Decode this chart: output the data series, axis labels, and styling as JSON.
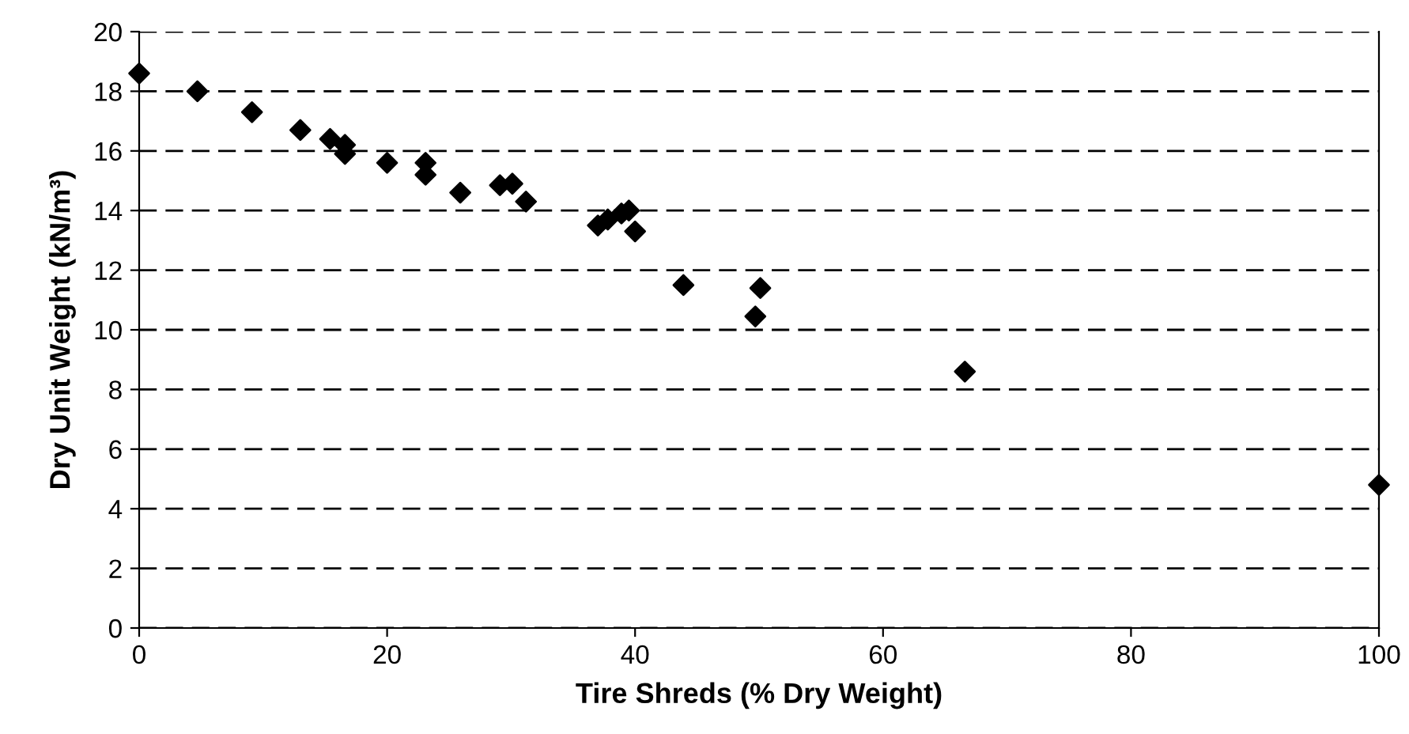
{
  "chart_data": {
    "type": "scatter",
    "xlabel": "Tire Shreds (% Dry Weight)",
    "ylabel": "Dry Unit Weight (kN/m³)",
    "x": [
      0,
      4.7,
      9.1,
      13.0,
      15.4,
      16.6,
      16.6,
      20.0,
      23.1,
      23.1,
      25.9,
      29.1,
      30.1,
      31.2,
      37.0,
      37.8,
      38.9,
      39.5,
      40.0,
      43.9,
      50.1,
      49.7,
      66.6,
      100
    ],
    "values": [
      18.6,
      18.0,
      17.3,
      16.7,
      16.4,
      16.2,
      15.9,
      15.6,
      15.6,
      15.2,
      14.6,
      14.85,
      14.9,
      14.3,
      13.5,
      13.7,
      13.9,
      14.0,
      13.3,
      11.5,
      11.4,
      10.45,
      8.6,
      4.8
    ],
    "color": "#000000",
    "marker": "diamond",
    "xlim": [
      0,
      100
    ],
    "xticks": [
      0,
      20,
      40,
      60,
      80,
      100
    ],
    "ylim": [
      0,
      20
    ],
    "yticks": [
      0,
      2,
      4,
      6,
      8,
      10,
      12,
      14,
      16,
      18,
      20
    ],
    "grid": "y",
    "line_style": "dashed"
  }
}
